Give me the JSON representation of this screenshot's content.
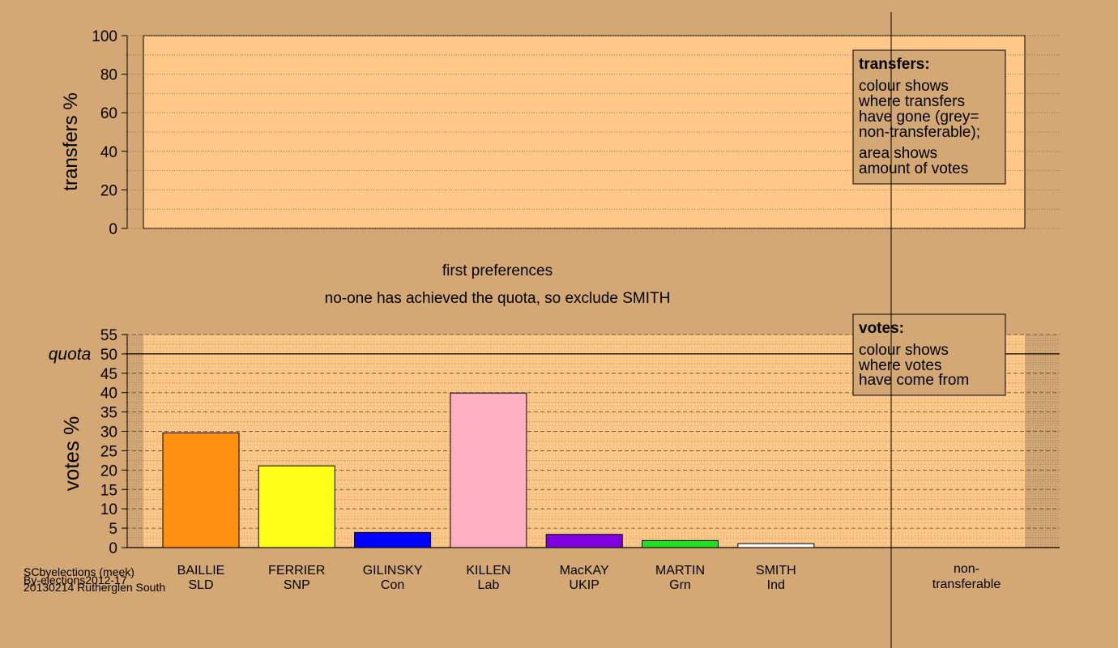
{
  "chart_data": [
    {
      "type": "bar",
      "ylabel": "transfers %",
      "ylim": [
        0,
        100
      ],
      "yticks": [
        "0",
        "20",
        "40",
        "60",
        "80",
        "100"
      ],
      "series": [],
      "legend": {
        "title": "transfers:",
        "lines": [
          "colour shows",
          "where transfers",
          "have gone (grey=",
          "non-transferable);",
          "area shows",
          "amount of votes"
        ]
      }
    },
    {
      "type": "bar",
      "caption": "first preferences",
      "subcaption": "no-one has achieved the quota, so exclude SMITH",
      "ylabel": "votes %",
      "ylim": [
        0,
        55
      ],
      "yticks": [
        "0",
        "5",
        "10",
        "15",
        "20",
        "25",
        "30",
        "35",
        "40",
        "45",
        "50",
        "55"
      ],
      "quota_label": "quota",
      "quota": 50,
      "categories": [
        {
          "name": "BAILLIE",
          "party": "SLD"
        },
        {
          "name": "FERRIER",
          "party": "SNP"
        },
        {
          "name": "GILINSKY",
          "party": "Con"
        },
        {
          "name": "KILLEN",
          "party": "Lab"
        },
        {
          "name": "MacKAY",
          "party": "UKIP"
        },
        {
          "name": "MARTIN",
          "party": "Grn"
        },
        {
          "name": "SMITH",
          "party": "Ind"
        }
      ],
      "values": [
        29.6,
        21.1,
        3.9,
        39.9,
        3.4,
        1.8,
        1.0
      ],
      "colors": [
        "#ff9010",
        "#ffff1a",
        "#0000ff",
        "#ffb0c0",
        "#8000e0",
        "#20e020",
        "#ffffff"
      ],
      "nontransferable_label": [
        "non-",
        "transferable"
      ],
      "legend": {
        "title": "votes:",
        "lines": [
          "colour shows",
          "where votes",
          "have come from"
        ]
      }
    }
  ],
  "footer": {
    "lines": [
      "SCbyelections (meek)",
      "By-elections2012-17",
      "20130214 Rutherglen South"
    ]
  }
}
